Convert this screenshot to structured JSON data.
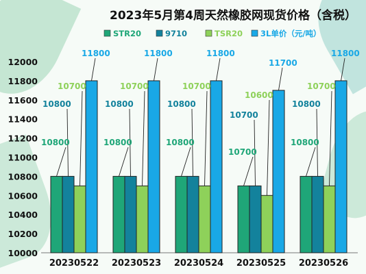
{
  "chart_data": {
    "type": "bar",
    "title": "2023年5月第4周天然橡胶网现货价格（含税）",
    "categories": [
      "20230522",
      "20230523",
      "20230524",
      "20230525",
      "20230526"
    ],
    "series": [
      {
        "name": "STR20",
        "color": "#1fa678",
        "values": [
          10800,
          10800,
          10800,
          10700,
          10800
        ]
      },
      {
        "name": "9710",
        "color": "#13829c",
        "values": [
          10800,
          10800,
          10800,
          10700,
          10800
        ]
      },
      {
        "name": "TSR20",
        "color": "#8ed15a",
        "values": [
          10700,
          10700,
          10700,
          10600,
          10700
        ]
      },
      {
        "name": "3L单价（元/吨）",
        "color": "#19a8e6",
        "values": [
          11800,
          11800,
          11800,
          11700,
          11800
        ]
      }
    ],
    "label_colors": [
      "#1fa678",
      "#13829c",
      "#8ed15a",
      "#19a8e6"
    ],
    "ylim": [
      10000,
      12000
    ],
    "yticks": [
      "10000",
      "10200",
      "10400",
      "10600",
      "10800",
      "11000",
      "11200",
      "11400",
      "11600",
      "11800",
      "12000"
    ],
    "legend_position": "top-center",
    "grid": false
  }
}
